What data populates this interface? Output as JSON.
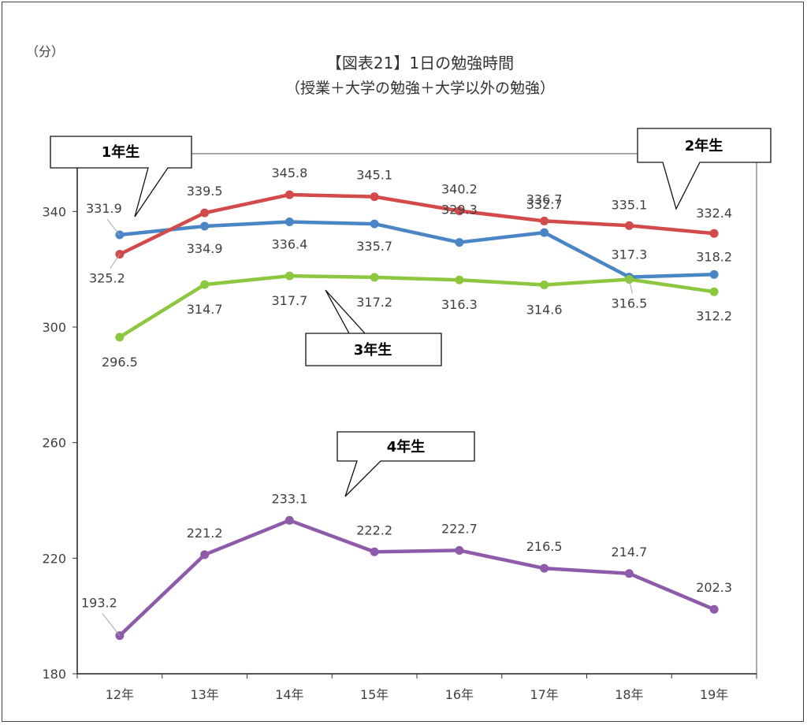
{
  "chart_data": {
    "type": "line",
    "title": "【図表21】1日の勉強時間",
    "subtitle": "（授業＋大学の勉強＋大学以外の勉強）",
    "ylabel": "（分）",
    "xlabel": "",
    "categories": [
      "12年",
      "13年",
      "14年",
      "15年",
      "16年",
      "17年",
      "18年",
      "19年"
    ],
    "ylim": [
      180,
      360
    ],
    "yticks": [
      180,
      220,
      260,
      300,
      340
    ],
    "grid": false,
    "legend": "callouts",
    "series": [
      {
        "name": "1年生",
        "color": "#4a86c5",
        "values": [
          331.9,
          334.9,
          336.4,
          335.7,
          329.3,
          332.7,
          317.3,
          318.2
        ]
      },
      {
        "name": "2年生",
        "color": "#d24a4a",
        "values": [
          325.2,
          339.5,
          345.8,
          345.1,
          340.2,
          336.7,
          335.1,
          332.4
        ]
      },
      {
        "name": "3年生",
        "color": "#8dc63f",
        "values": [
          296.5,
          314.7,
          317.7,
          317.2,
          316.3,
          314.6,
          316.5,
          312.2
        ]
      },
      {
        "name": "4年生",
        "color": "#8e5bab",
        "values": [
          193.2,
          221.2,
          233.1,
          222.2,
          222.7,
          216.5,
          214.7,
          202.3
        ]
      }
    ]
  }
}
